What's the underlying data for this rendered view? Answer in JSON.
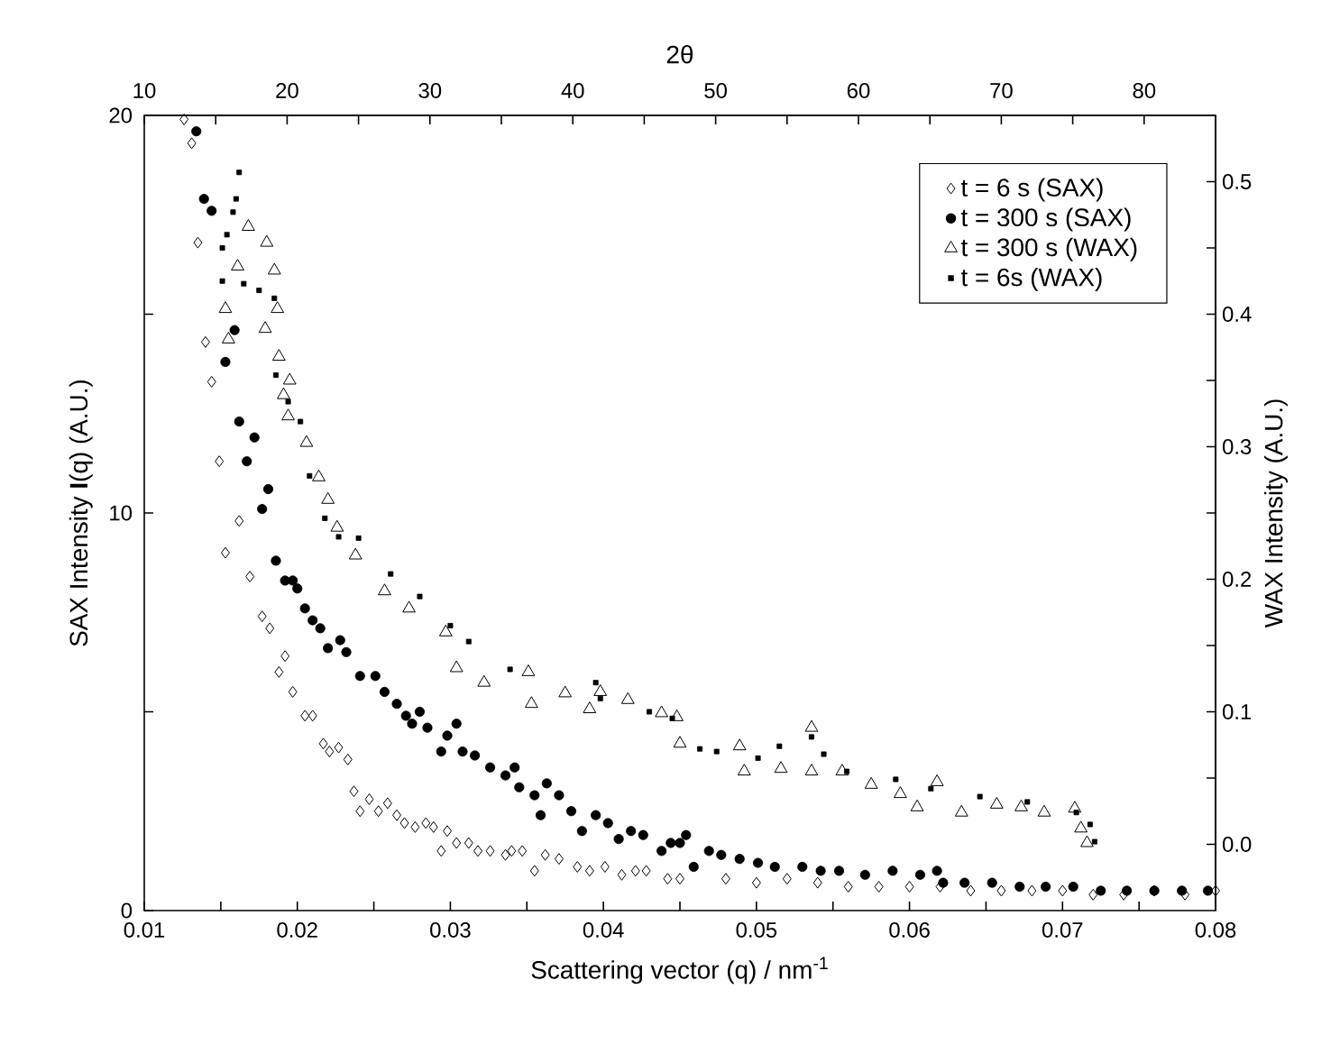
{
  "chart_data": {
    "type": "scatter",
    "xlabel": "Scattering vector (q) / nm$^{-1}$",
    "ylabel": "SAX Intensity **I**(q) (A.U.)",
    "y2label": "WAX Intensity (A.U.)",
    "x2label": "2θ",
    "xlim": [
      0.01,
      0.08
    ],
    "xticks": [
      0.01,
      {
        "value": 0.015,
        "label": null
      },
      0.02,
      {
        "value": 0.025,
        "label": null
      },
      0.03,
      {
        "value": 0.035,
        "label": null
      },
      0.04,
      {
        "value": 0.045,
        "label": null
      },
      0.05,
      {
        "value": 0.055,
        "label": null
      },
      0.06,
      {
        "value": 0.065,
        "label": null
      },
      0.07,
      {
        "value": 0.075,
        "label": null
      },
      0.08
    ],
    "ylim": [
      0,
      20
    ],
    "yticks": [
      0,
      {
        "value": 5,
        "label": null
      },
      10,
      {
        "value": 15,
        "label": null
      },
      20
    ],
    "y2lim": [
      -0.05,
      0.55
    ],
    "y2ticks": [
      {
        "value": 0,
        "label": "0.0"
      },
      {
        "value": 0.05,
        "label": null
      },
      0.1,
      {
        "value": 0.15,
        "label": null
      },
      0.2,
      {
        "value": 0.25,
        "label": null
      },
      0.3,
      {
        "value": 0.35,
        "label": null
      },
      0.4,
      {
        "value": 0.45,
        "label": null
      },
      0.5
    ],
    "x2lim": [
      10,
      85
    ],
    "x2ticks": [
      10,
      {
        "value": 15,
        "label": null
      },
      20,
      {
        "value": 25,
        "label": null
      },
      30,
      {
        "value": 35,
        "label": null
      },
      40,
      {
        "value": 45,
        "label": null
      },
      50,
      {
        "value": 55,
        "label": null
      },
      60,
      {
        "value": 65,
        "label": null
      },
      70,
      {
        "value": 75,
        "label": null
      },
      80
    ],
    "legend": "top right",
    "grid": false,
    "series": [
      {
        "name": "t = 6 s (SAX)",
        "color": "#000000",
        "marker": "diamond",
        "x": [
          0.0126,
          0.0131,
          0.0135,
          0.014,
          0.0144,
          0.0149,
          0.0153,
          0.0162,
          0.0169,
          0.0177,
          0.0182,
          0.0188,
          0.0192,
          0.0197,
          0.0205,
          0.021,
          0.0217,
          0.0221,
          0.0227,
          0.0233,
          0.0237,
          0.0241,
          0.0247,
          0.0253,
          0.0259,
          0.0265,
          0.027,
          0.0277,
          0.0284,
          0.0289,
          0.0294,
          0.0298,
          0.0304,
          0.0312,
          0.0318,
          0.0326,
          0.0336,
          0.034,
          0.0347,
          0.0355,
          0.0362,
          0.0371,
          0.0383,
          0.0391,
          0.0401,
          0.0412,
          0.0421,
          0.0428,
          0.0442,
          0.045,
          0.048,
          0.05,
          0.052,
          0.054,
          0.056,
          0.058,
          0.06,
          0.062,
          0.064,
          0.066,
          0.068,
          0.07,
          0.072,
          0.074,
          0.076,
          0.078,
          0.08
        ],
        "values": [
          19.9,
          19.3,
          16.8,
          14.3,
          13.3,
          11.3,
          9.0,
          9.8,
          8.4,
          7.4,
          7.1,
          6.0,
          6.4,
          5.5,
          4.9,
          4.9,
          4.2,
          4.0,
          4.1,
          3.8,
          3.0,
          2.5,
          2.8,
          2.5,
          2.7,
          2.4,
          2.2,
          2.1,
          2.2,
          2.1,
          1.5,
          2.0,
          1.7,
          1.7,
          1.5,
          1.5,
          1.4,
          1.5,
          1.5,
          1.0,
          1.4,
          1.3,
          1.1,
          1.0,
          1.1,
          0.9,
          1.0,
          1.0,
          0.8,
          0.8,
          0.8,
          0.7,
          0.8,
          0.7,
          0.6,
          0.6,
          0.6,
          0.6,
          0.5,
          0.5,
          0.5,
          0.5,
          0.4,
          0.4,
          0.5,
          0.4,
          0.5
        ]
      },
      {
        "name": "t = 300 s (SAX)",
        "color": "#000000",
        "marker": "circle",
        "x": [
          0.0134,
          0.0139,
          0.0144,
          0.0153,
          0.0159,
          0.0162,
          0.0167,
          0.0172,
          0.0177,
          0.0181,
          0.0186,
          0.0192,
          0.0197,
          0.02,
          0.0205,
          0.021,
          0.0215,
          0.022,
          0.0228,
          0.0232,
          0.0241,
          0.0251,
          0.0257,
          0.0265,
          0.0271,
          0.0275,
          0.028,
          0.0285,
          0.0294,
          0.0298,
          0.0304,
          0.0308,
          0.0316,
          0.0326,
          0.0336,
          0.0342,
          0.0345,
          0.0355,
          0.0359,
          0.0363,
          0.0371,
          0.0379,
          0.0386,
          0.0395,
          0.0403,
          0.041,
          0.0418,
          0.0426,
          0.0438,
          0.0444,
          0.045,
          0.0454,
          0.0459,
          0.0469,
          0.0477,
          0.0489,
          0.0501,
          0.0512,
          0.053,
          0.0542,
          0.0554,
          0.0571,
          0.0589,
          0.0607,
          0.0618,
          0.0622,
          0.0636,
          0.0654,
          0.0672,
          0.0689,
          0.0707,
          0.0725,
          0.0742,
          0.076,
          0.0778,
          0.0795
        ],
        "values": [
          19.6,
          17.9,
          17.6,
          13.8,
          14.6,
          12.3,
          11.3,
          11.9,
          10.1,
          10.6,
          8.8,
          8.3,
          8.3,
          8.1,
          7.6,
          7.3,
          7.1,
          6.6,
          6.8,
          6.5,
          5.9,
          5.9,
          5.5,
          5.2,
          4.9,
          4.7,
          5.0,
          4.6,
          4.0,
          4.4,
          4.7,
          4.0,
          3.9,
          3.6,
          3.4,
          3.6,
          3.1,
          2.9,
          2.4,
          3.2,
          2.9,
          2.5,
          2.0,
          2.4,
          2.2,
          1.8,
          2.0,
          1.9,
          1.5,
          1.7,
          1.7,
          1.9,
          1.1,
          1.5,
          1.4,
          1.3,
          1.2,
          1.1,
          1.1,
          1.0,
          1.0,
          0.9,
          1.0,
          0.9,
          1.0,
          0.7,
          0.7,
          0.7,
          0.6,
          0.6,
          0.6,
          0.5,
          0.5,
          0.5,
          0.5,
          0.5
        ]
      },
      {
        "name": "t = 300 s (WAX)",
        "color": "#000000",
        "marker": "triangle",
        "axis": "y2",
        "x": [
          0.0153,
          0.0155,
          0.0161,
          0.0168,
          0.0179,
          0.018,
          0.0185,
          0.0187,
          0.0188,
          0.0191,
          0.0194,
          0.0195,
          0.0206,
          0.0214,
          0.022,
          0.0226,
          0.0238,
          0.0257,
          0.0273,
          0.0297,
          0.0304,
          0.0322,
          0.0351,
          0.0353,
          0.0375,
          0.0391,
          0.0398,
          0.0416,
          0.0438,
          0.0448,
          0.045,
          0.0489,
          0.0492,
          0.0516,
          0.0536,
          0.0536,
          0.0556,
          0.0575,
          0.0594,
          0.0605,
          0.0618,
          0.0634,
          0.0657,
          0.0673,
          0.0688,
          0.0708,
          0.0712,
          0.0716
        ],
        "values": [
          0.404,
          0.381,
          0.436,
          0.466,
          0.389,
          0.454,
          0.433,
          0.404,
          0.368,
          0.339,
          0.323,
          0.35,
          0.303,
          0.277,
          0.26,
          0.239,
          0.218,
          0.191,
          0.178,
          0.16,
          0.133,
          0.122,
          0.13,
          0.106,
          0.114,
          0.102,
          0.115,
          0.109,
          0.099,
          0.096,
          0.076,
          0.074,
          0.055,
          0.057,
          0.088,
          0.055,
          0.055,
          0.045,
          0.038,
          0.028,
          0.047,
          0.024,
          0.03,
          0.028,
          0.024,
          0.027,
          0.012,
          0.001
        ]
      },
      {
        "name": "t = 6s (WAX)",
        "color": "#000000",
        "marker": "square",
        "axis": "y2",
        "x": [
          0.0151,
          0.0151,
          0.0154,
          0.0158,
          0.016,
          0.0162,
          0.0165,
          0.0175,
          0.0185,
          0.0186,
          0.0194,
          0.0202,
          0.0208,
          0.0218,
          0.0227,
          0.024,
          0.0261,
          0.028,
          0.03,
          0.0312,
          0.0339,
          0.0395,
          0.0398,
          0.043,
          0.0445,
          0.0463,
          0.0474,
          0.0501,
          0.0515,
          0.0536,
          0.0544,
          0.0559,
          0.0591,
          0.0614,
          0.0646,
          0.0677,
          0.0709,
          0.0718,
          0.0721
        ],
        "values": [
          0.45,
          0.425,
          0.46,
          0.477,
          0.487,
          0.507,
          0.423,
          0.418,
          0.412,
          0.354,
          0.334,
          0.319,
          0.278,
          0.246,
          0.232,
          0.231,
          0.204,
          0.187,
          0.165,
          0.153,
          0.132,
          0.122,
          0.11,
          0.1,
          0.095,
          0.072,
          0.07,
          0.065,
          0.074,
          0.081,
          0.068,
          0.055,
          0.049,
          0.042,
          0.036,
          0.032,
          0.024,
          0.015,
          0.002
        ]
      }
    ]
  }
}
